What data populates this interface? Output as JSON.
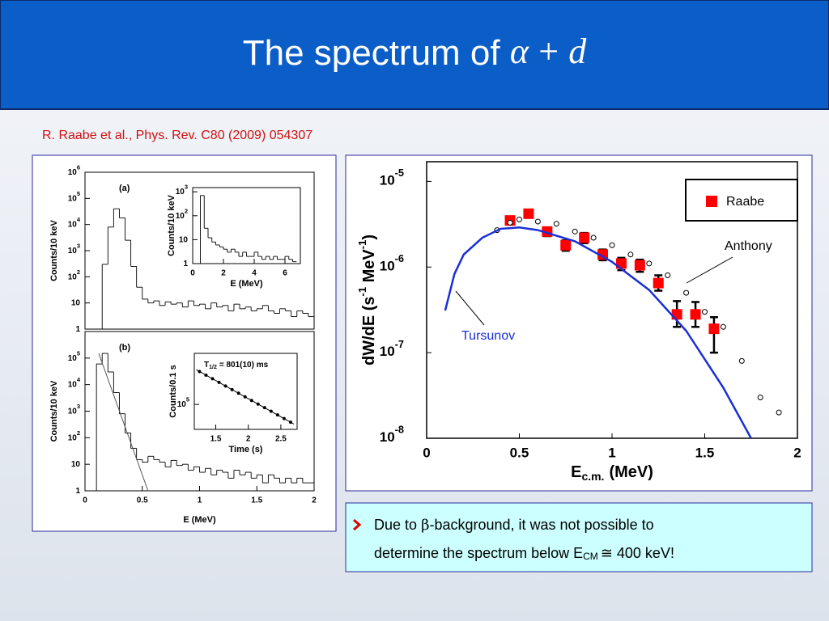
{
  "title": {
    "text": "The spectrum of",
    "alpha": "α",
    "operator": "+",
    "d": "d"
  },
  "reference": "R. Raabe et al., Phys. Rev. C80 (2009) 054307",
  "note": {
    "line1": [
      "Due to",
      "β",
      "-background, it was not possible to"
    ],
    "line2": [
      "determine the spectrum below E",
      "CM",
      "≅ 400 keV!"
    ]
  },
  "chart_data": [
    {
      "type": "histogram",
      "label": "(a)",
      "ylabel": "Counts/10 keV",
      "xlim": [
        0,
        2
      ],
      "ylim": [
        1,
        1000000
      ],
      "ylog": true,
      "yticks": [
        {
          "value": 1000000,
          "label": "10",
          "exponent": "6"
        },
        {
          "value": 100000,
          "label": "10",
          "exponent": "5"
        },
        {
          "value": 10000,
          "label": "10",
          "exponent": "4"
        },
        {
          "value": 1000,
          "label": "10",
          "exponent": "3"
        },
        {
          "value": 100,
          "label": "10",
          "exponent": "2"
        },
        10,
        1
      ],
      "series": [
        {
          "color": "#000000",
          "bins": [
            0.1,
            0.15,
            0.2,
            0.25,
            0.3,
            0.35,
            0.4,
            0.45,
            0.5,
            0.55,
            0.6,
            0.65,
            0.7,
            0.75,
            0.8,
            0.85,
            0.9,
            0.95,
            1,
            1.05,
            1.1,
            1.15,
            1.2,
            1.25,
            1.3,
            1.35,
            1.4,
            1.45,
            1.5,
            1.55,
            1.6,
            1.65,
            1.7,
            1.75,
            1.8,
            1.85,
            1.9,
            1.95,
            2
          ],
          "values": [
            1,
            300,
            8000,
            40000,
            18000,
            2500,
            250,
            40,
            14,
            10,
            12,
            8,
            11,
            9,
            10,
            7,
            12,
            8,
            9,
            6,
            10,
            7,
            8,
            5,
            9,
            6,
            7,
            5,
            6,
            8,
            5,
            4,
            6,
            5,
            3,
            5,
            4,
            3
          ]
        }
      ]
    },
    {
      "type": "histogram",
      "xlabel": "E (MeV)",
      "ylabel": "Counts/10 keV",
      "xlim": [
        0,
        7
      ],
      "ylim": [
        1,
        1500
      ],
      "ylog": true,
      "xticks": [
        0,
        2,
        4,
        6
      ],
      "yticks": [
        {
          "value": 1000,
          "label": "10",
          "exponent": "3"
        },
        {
          "value": 100,
          "label": "10",
          "exponent": "2"
        },
        10,
        1
      ],
      "series": [
        {
          "color": "#000000",
          "bins": [
            0.5,
            0.75,
            1,
            1.25,
            1.5,
            1.75,
            2,
            2.25,
            2.5,
            2.75,
            3,
            3.25,
            3.5,
            3.75,
            4,
            4.25,
            4.5,
            4.75,
            5,
            5.25,
            5.5,
            5.75,
            6,
            6.25,
            6.5,
            6.75
          ],
          "values": [
            700,
            30,
            12,
            8,
            6,
            5,
            4,
            3,
            4,
            3,
            2,
            3,
            2,
            2,
            3,
            2,
            1.5,
            2,
            1.5,
            2,
            1.5,
            1.5,
            2,
            1.5,
            1.2
          ]
        }
      ]
    },
    {
      "type": "histogram",
      "label": "(b)",
      "xlabel": "E (MeV)",
      "ylabel": "Counts/10 keV",
      "xlim": [
        0,
        2
      ],
      "ylim": [
        1,
        1000000
      ],
      "ylog": true,
      "xticks": [
        0,
        0.5,
        1,
        1.5,
        2
      ],
      "yticks": [
        {
          "value": 100000,
          "label": "10",
          "exponent": "5"
        },
        {
          "value": 10000,
          "label": "10",
          "exponent": "4"
        },
        {
          "value": 1000,
          "label": "10",
          "exponent": "3"
        },
        {
          "value": 100,
          "label": "10",
          "exponent": "2"
        },
        10,
        1
      ],
      "series": [
        {
          "color": "#000000",
          "bins": [
            0.1,
            0.15,
            0.2,
            0.25,
            0.3,
            0.35,
            0.4,
            0.45,
            0.5,
            0.55,
            0.6,
            0.65,
            0.7,
            0.75,
            0.8,
            0.85,
            0.9,
            0.95,
            1,
            1.05,
            1.1,
            1.15,
            1.2,
            1.25,
            1.3,
            1.35,
            1.4,
            1.45,
            1.5,
            1.55,
            1.6,
            1.65,
            1.7,
            1.75,
            1.8,
            1.85,
            1.9,
            1.95,
            2
          ],
          "values": [
            60000,
            150000,
            30000,
            5000,
            800,
            150,
            40,
            15,
            12,
            20,
            15,
            12,
            8,
            14,
            9,
            10,
            6,
            8,
            5,
            7,
            4,
            6,
            5,
            3,
            6,
            4,
            5,
            3,
            4,
            2,
            4,
            3,
            2,
            3,
            2,
            3,
            2,
            2
          ]
        },
        {
          "type": "line",
          "color": "#555555",
          "x": [
            0.12,
            0.55
          ],
          "values": [
            150000,
            1
          ]
        }
      ]
    },
    {
      "type": "scatter",
      "annotation": [
        "T",
        "1/2",
        "= 801(10) ms"
      ],
      "xlabel": "Time (s)",
      "ylabel": "Counts/0.1 s",
      "xlim": [
        1.17,
        2.75
      ],
      "ylim": [
        55000,
        340000
      ],
      "ylog": true,
      "xticks": [
        1.5,
        2,
        2.5
      ],
      "yticks": [
        {
          "value": 100000,
          "label": "10",
          "exponent": "5"
        }
      ],
      "series": [
        {
          "type": "scatter",
          "color": "#000000",
          "x": [
            1.25,
            1.35,
            1.45,
            1.55,
            1.65,
            1.75,
            1.85,
            1.95,
            2.05,
            2.15,
            2.25,
            2.35,
            2.45,
            2.55,
            2.65
          ],
          "values": [
            220000,
            201700,
            185000,
            169600,
            155500,
            142600,
            130800,
            119900,
            110000,
            100800,
            92500,
            84800,
            77700,
            71300,
            65400
          ]
        },
        {
          "type": "line",
          "color": "#000000",
          "x": [
            1.2,
            2.7
          ],
          "values": [
            229800,
            62500
          ]
        }
      ]
    },
    {
      "type": "scatter",
      "xlabel_parts": [
        "E",
        "c.m.",
        "(MeV)"
      ],
      "ylabel_parts": [
        "dW/dE (s",
        "-1",
        " MeV",
        "-1",
        ")"
      ],
      "xlim": [
        0,
        2
      ],
      "ylim": [
        1e-08,
        1.7e-05
      ],
      "ylog": true,
      "xticks": [
        0,
        0.5,
        1,
        1.5,
        2
      ],
      "yticks": [
        {
          "value": 1e-05,
          "label": "10",
          "exponent": "-5"
        },
        {
          "value": 1e-06,
          "label": "10",
          "exponent": "-6"
        },
        {
          "value": 1e-07,
          "label": "10",
          "exponent": "-7"
        },
        {
          "value": 1e-08,
          "label": "10",
          "exponent": "-8"
        }
      ],
      "series": [
        {
          "name": "Raabe",
          "type": "squares",
          "color": "#ff0000",
          "x": [
            0.45,
            0.55,
            0.65,
            0.75,
            0.85,
            0.95,
            1.05,
            1.15,
            1.25,
            1.35,
            1.45,
            1.55
          ],
          "values": [
            3.5e-06,
            4.2e-06,
            2.6e-06,
            1.8e-06,
            2.2e-06,
            1.4e-06,
            1.1e-06,
            1.05e-06,
            6.5e-07,
            2.8e-07,
            2.8e-07,
            1.9e-07
          ],
          "lower": [
            3.2e-06,
            3.8e-06,
            2.3e-06,
            1.55e-06,
            1.9e-06,
            1.2e-06,
            9.2e-07,
            8.8e-07,
            5.3e-07,
            2e-07,
            2e-07,
            1e-07
          ],
          "upper": [
            3.8e-06,
            4.6e-06,
            2.9e-06,
            2.05e-06,
            2.5e-06,
            1.6e-06,
            1.28e-06,
            1.22e-06,
            8e-07,
            4e-07,
            3.9e-07,
            2.6e-07
          ]
        },
        {
          "name": "Anthony",
          "type": "circles",
          "color": "#000000",
          "x": [
            0.38,
            0.45,
            0.5,
            0.6,
            0.7,
            0.8,
            0.9,
            1.0,
            1.1,
            1.2,
            1.3,
            1.4,
            1.5,
            1.6,
            1.7,
            1.8,
            1.9
          ],
          "values": [
            2.7e-06,
            3.3e-06,
            3.6e-06,
            3.4e-06,
            3.2e-06,
            2.6e-06,
            2.2e-06,
            1.8e-06,
            1.4e-06,
            1.1e-06,
            8e-07,
            5e-07,
            3e-07,
            2e-07,
            8e-08,
            3e-08,
            2e-08
          ]
        },
        {
          "name": "Tursunov",
          "type": "line",
          "color": "#1a2fd6",
          "x": [
            0.1,
            0.15,
            0.2,
            0.3,
            0.4,
            0.5,
            0.6,
            0.8,
            1.0,
            1.2,
            1.4,
            1.6,
            1.75
          ],
          "values": [
            3.1e-07,
            8.3e-07,
            1.4e-06,
            2.2e-06,
            2.8e-06,
            2.9e-06,
            2.7e-06,
            2e-06,
            1.15e-06,
            5.4e-07,
            1.8e-07,
            3.9e-08,
            1e-08
          ]
        }
      ]
    }
  ]
}
